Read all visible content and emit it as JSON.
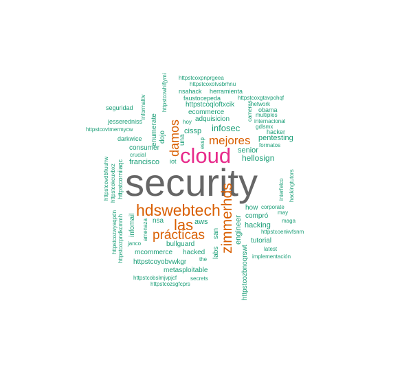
{
  "colors": {
    "gray": "#666666",
    "pink": "#e7298a",
    "orange": "#d95f02",
    "green": "#1b9e77"
  },
  "words": {
    "security": "security",
    "cloud": "cloud",
    "hdswebtech": "hdswebtech",
    "zimmerhds": "zimmerhds",
    "las": "las",
    "practicas": "prácticas",
    "mejores": "mejores",
    "damos": "damos",
    "httpstcoxpnprgeea": "httpstcoxpnprgeea",
    "httpstcoxotvsbrhnu": "httpstcoxotvsbrhnu",
    "nsahack": "nsahack",
    "herramienta": "herramienta",
    "faustocepeda": "faustocepeda",
    "httpstcoxgtavpohqf": "httpstcoxgtavpohqf",
    "network": "network",
    "httpstcoqloftxcik": "httpstcoqloftxcik",
    "obama": "obama",
    "multiples": "multiples",
    "ecommerce1": "ecommerce",
    "internacional": "internacional",
    "gdlsmx": "gdlsmx",
    "hoy": "hoy",
    "ecommerce2": "ecommerce",
    "seguridad": "seguridad",
    "jesseredniss": "jesseredniss",
    "httpstcovtmermycw": "httpstcovtmermycw",
    "darkwice": "darkwice",
    "infosec": "infosec",
    "adquisicion": "adquisicion",
    "cissp": "cissp",
    "pentesting": "pentesting",
    "formatos": "formatos",
    "senior": "senior",
    "hacker": "hacker",
    "hellosign": "hellosign",
    "consumer": "consumer",
    "crucial": "crucial",
    "francisco": "francisco",
    "iot": "iot",
    "nsa": "nsa",
    "aws": "aws",
    "how": "how",
    "corporate": "corporate",
    "may": "may",
    "maga": "maga",
    "compro": "compró",
    "hacking": "hacking",
    "httpstcoenkvfsnm": "httpstcoenkvfsnm",
    "tutorial": "tutorial",
    "latest": "latest",
    "bullguard": "bullguard",
    "janco": "janco",
    "mcommerce": "mcommerce",
    "hacked": "hacked",
    "the": "the",
    "implementacion": "implementación",
    "httpstcoyobvwkgr": "httpstcoyobvwkgr",
    "metasploitable": "metasploitable",
    "httpstcobslmjvpjcf": "httpstcobslmjvpjcf",
    "secrets": "secrets",
    "httpstcozsgfcprs": "httpstcozsgfcprs",
    "httpstcowhifjymi": "httpstcowhifjymi",
    "informaltiv": "informaltiv",
    "enumerate": "enumerate",
    "dojo": "dojo",
    "una": "una",
    "essp": "essp",
    "cameras": "cameras",
    "httpstcovdbfiuuhw": "httpstcovdbfiuuhw",
    "httpstcokcuxbxz": "httpstcokcuxbxz",
    "httpstcorniiaqc": "httpstcorniiaqc",
    "infomail": "infomail",
    "httpstcozwyaqpdn": "httpstcozwyaqpdn",
    "httpstcozpndkcmmh": "httpstcozpndkcmmh",
    "amenaza": "amenaza",
    "labs": "labs",
    "san": "san",
    "engineer": "engineer",
    "httpstcozbnoqrswt": "httpstcozbnoqrswt",
    "interfelco": "interfelco",
    "hackingtutors": "hackingtutors"
  }
}
